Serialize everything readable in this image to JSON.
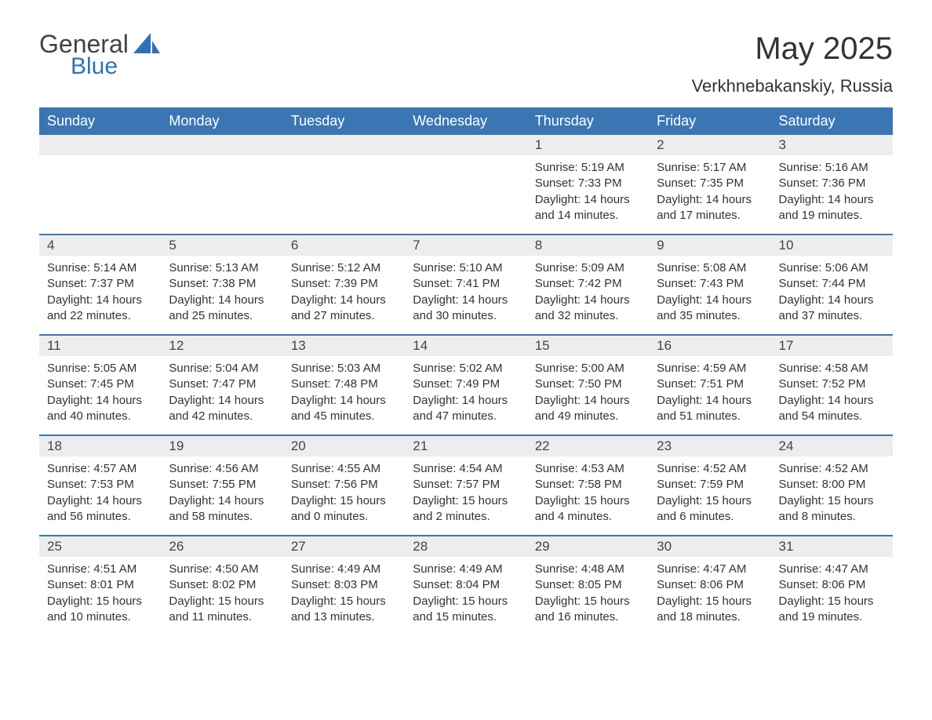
{
  "logo": {
    "word1": "General",
    "word2": "Blue",
    "text_color": "#424242",
    "accent_color": "#2f72b6"
  },
  "title": "May 2025",
  "subtitle": "Verkhnebakanskiy, Russia",
  "colors": {
    "header_bg": "#3a76b4",
    "header_text": "#ffffff",
    "week_divider": "#3a76b4",
    "daynum_bg": "#ededed",
    "body_text": "#333333",
    "page_bg": "#ffffff"
  },
  "day_headers": [
    "Sunday",
    "Monday",
    "Tuesday",
    "Wednesday",
    "Thursday",
    "Friday",
    "Saturday"
  ],
  "weeks": [
    [
      {
        "day": "",
        "sunrise": "",
        "sunset": "",
        "daylight": ""
      },
      {
        "day": "",
        "sunrise": "",
        "sunset": "",
        "daylight": ""
      },
      {
        "day": "",
        "sunrise": "",
        "sunset": "",
        "daylight": ""
      },
      {
        "day": "",
        "sunrise": "",
        "sunset": "",
        "daylight": ""
      },
      {
        "day": "1",
        "sunrise": "Sunrise: 5:19 AM",
        "sunset": "Sunset: 7:33 PM",
        "daylight": "Daylight: 14 hours and 14 minutes."
      },
      {
        "day": "2",
        "sunrise": "Sunrise: 5:17 AM",
        "sunset": "Sunset: 7:35 PM",
        "daylight": "Daylight: 14 hours and 17 minutes."
      },
      {
        "day": "3",
        "sunrise": "Sunrise: 5:16 AM",
        "sunset": "Sunset: 7:36 PM",
        "daylight": "Daylight: 14 hours and 19 minutes."
      }
    ],
    [
      {
        "day": "4",
        "sunrise": "Sunrise: 5:14 AM",
        "sunset": "Sunset: 7:37 PM",
        "daylight": "Daylight: 14 hours and 22 minutes."
      },
      {
        "day": "5",
        "sunrise": "Sunrise: 5:13 AM",
        "sunset": "Sunset: 7:38 PM",
        "daylight": "Daylight: 14 hours and 25 minutes."
      },
      {
        "day": "6",
        "sunrise": "Sunrise: 5:12 AM",
        "sunset": "Sunset: 7:39 PM",
        "daylight": "Daylight: 14 hours and 27 minutes."
      },
      {
        "day": "7",
        "sunrise": "Sunrise: 5:10 AM",
        "sunset": "Sunset: 7:41 PM",
        "daylight": "Daylight: 14 hours and 30 minutes."
      },
      {
        "day": "8",
        "sunrise": "Sunrise: 5:09 AM",
        "sunset": "Sunset: 7:42 PM",
        "daylight": "Daylight: 14 hours and 32 minutes."
      },
      {
        "day": "9",
        "sunrise": "Sunrise: 5:08 AM",
        "sunset": "Sunset: 7:43 PM",
        "daylight": "Daylight: 14 hours and 35 minutes."
      },
      {
        "day": "10",
        "sunrise": "Sunrise: 5:06 AM",
        "sunset": "Sunset: 7:44 PM",
        "daylight": "Daylight: 14 hours and 37 minutes."
      }
    ],
    [
      {
        "day": "11",
        "sunrise": "Sunrise: 5:05 AM",
        "sunset": "Sunset: 7:45 PM",
        "daylight": "Daylight: 14 hours and 40 minutes."
      },
      {
        "day": "12",
        "sunrise": "Sunrise: 5:04 AM",
        "sunset": "Sunset: 7:47 PM",
        "daylight": "Daylight: 14 hours and 42 minutes."
      },
      {
        "day": "13",
        "sunrise": "Sunrise: 5:03 AM",
        "sunset": "Sunset: 7:48 PM",
        "daylight": "Daylight: 14 hours and 45 minutes."
      },
      {
        "day": "14",
        "sunrise": "Sunrise: 5:02 AM",
        "sunset": "Sunset: 7:49 PM",
        "daylight": "Daylight: 14 hours and 47 minutes."
      },
      {
        "day": "15",
        "sunrise": "Sunrise: 5:00 AM",
        "sunset": "Sunset: 7:50 PM",
        "daylight": "Daylight: 14 hours and 49 minutes."
      },
      {
        "day": "16",
        "sunrise": "Sunrise: 4:59 AM",
        "sunset": "Sunset: 7:51 PM",
        "daylight": "Daylight: 14 hours and 51 minutes."
      },
      {
        "day": "17",
        "sunrise": "Sunrise: 4:58 AM",
        "sunset": "Sunset: 7:52 PM",
        "daylight": "Daylight: 14 hours and 54 minutes."
      }
    ],
    [
      {
        "day": "18",
        "sunrise": "Sunrise: 4:57 AM",
        "sunset": "Sunset: 7:53 PM",
        "daylight": "Daylight: 14 hours and 56 minutes."
      },
      {
        "day": "19",
        "sunrise": "Sunrise: 4:56 AM",
        "sunset": "Sunset: 7:55 PM",
        "daylight": "Daylight: 14 hours and 58 minutes."
      },
      {
        "day": "20",
        "sunrise": "Sunrise: 4:55 AM",
        "sunset": "Sunset: 7:56 PM",
        "daylight": "Daylight: 15 hours and 0 minutes."
      },
      {
        "day": "21",
        "sunrise": "Sunrise: 4:54 AM",
        "sunset": "Sunset: 7:57 PM",
        "daylight": "Daylight: 15 hours and 2 minutes."
      },
      {
        "day": "22",
        "sunrise": "Sunrise: 4:53 AM",
        "sunset": "Sunset: 7:58 PM",
        "daylight": "Daylight: 15 hours and 4 minutes."
      },
      {
        "day": "23",
        "sunrise": "Sunrise: 4:52 AM",
        "sunset": "Sunset: 7:59 PM",
        "daylight": "Daylight: 15 hours and 6 minutes."
      },
      {
        "day": "24",
        "sunrise": "Sunrise: 4:52 AM",
        "sunset": "Sunset: 8:00 PM",
        "daylight": "Daylight: 15 hours and 8 minutes."
      }
    ],
    [
      {
        "day": "25",
        "sunrise": "Sunrise: 4:51 AM",
        "sunset": "Sunset: 8:01 PM",
        "daylight": "Daylight: 15 hours and 10 minutes."
      },
      {
        "day": "26",
        "sunrise": "Sunrise: 4:50 AM",
        "sunset": "Sunset: 8:02 PM",
        "daylight": "Daylight: 15 hours and 11 minutes."
      },
      {
        "day": "27",
        "sunrise": "Sunrise: 4:49 AM",
        "sunset": "Sunset: 8:03 PM",
        "daylight": "Daylight: 15 hours and 13 minutes."
      },
      {
        "day": "28",
        "sunrise": "Sunrise: 4:49 AM",
        "sunset": "Sunset: 8:04 PM",
        "daylight": "Daylight: 15 hours and 15 minutes."
      },
      {
        "day": "29",
        "sunrise": "Sunrise: 4:48 AM",
        "sunset": "Sunset: 8:05 PM",
        "daylight": "Daylight: 15 hours and 16 minutes."
      },
      {
        "day": "30",
        "sunrise": "Sunrise: 4:47 AM",
        "sunset": "Sunset: 8:06 PM",
        "daylight": "Daylight: 15 hours and 18 minutes."
      },
      {
        "day": "31",
        "sunrise": "Sunrise: 4:47 AM",
        "sunset": "Sunset: 8:06 PM",
        "daylight": "Daylight: 15 hours and 19 minutes."
      }
    ]
  ]
}
